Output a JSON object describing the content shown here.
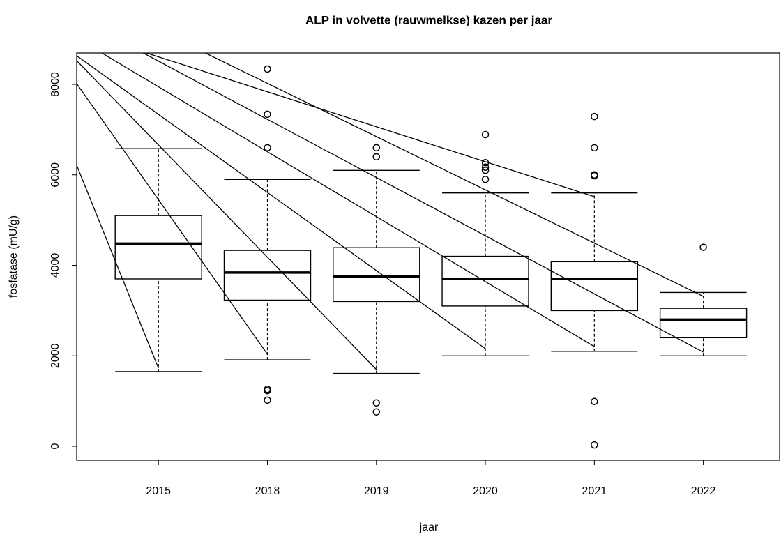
{
  "chart_data": {
    "type": "boxplot",
    "title": "ALP in volvette (rauwmelkse) kazen per jaar",
    "x_label": "jaar",
    "y_label": "fosfatase (mU/g)",
    "categories": [
      "2015",
      "2018",
      "2019",
      "2020",
      "2021",
      "2022"
    ],
    "boxes": [
      {
        "whislo": 1650,
        "q1": 3700,
        "med": 4480,
        "q3": 5100,
        "whishi": 6580,
        "outliers": []
      },
      {
        "whislo": 1910,
        "q1": 3230,
        "med": 3840,
        "q3": 4330,
        "whishi": 5900,
        "outliers": [
          8340,
          7340,
          6600,
          1260,
          1230,
          1020
        ]
      },
      {
        "whislo": 1610,
        "q1": 3200,
        "med": 3750,
        "q3": 4390,
        "whishi": 6100,
        "outliers": [
          6600,
          6400,
          960,
          760
        ]
      },
      {
        "whislo": 2000,
        "q1": 3100,
        "med": 3700,
        "q3": 4200,
        "whishi": 5600,
        "outliers": [
          6890,
          6270,
          6170,
          6100,
          5900
        ]
      },
      {
        "whislo": 2100,
        "q1": 3000,
        "med": 3700,
        "q3": 4080,
        "whishi": 5600,
        "outliers": [
          7290,
          6600,
          6000,
          5980,
          990,
          30
        ]
      },
      {
        "whislo": 2000,
        "q1": 2400,
        "med": 2800,
        "q3": 3050,
        "whishi": 3400,
        "outliers": [
          4400
        ]
      }
    ],
    "lines": [
      {
        "x": [
          0.25,
          1
        ],
        "y": [
          6212,
          1726
        ]
      },
      {
        "x": [
          0.25,
          2
        ],
        "y": [
          8015,
          2035
        ]
      },
      {
        "x": [
          0.25,
          3
        ],
        "y": [
          8524,
          1696
        ]
      },
      {
        "x": [
          0.25,
          4
        ],
        "y": [
          8632,
          2158
        ]
      },
      {
        "x": [
          0.48,
          5
        ],
        "y": [
          8694,
          2204
        ]
      },
      {
        "x": [
          0.86,
          6
        ],
        "y": [
          8694,
          2081
        ]
      },
      {
        "x": [
          0.89,
          5
        ],
        "y": [
          8694,
          5518
        ]
      },
      {
        "x": [
          1.43,
          6
        ],
        "y": [
          8694,
          3314
        ]
      }
    ],
    "xlim": [
      0.25,
      6.7
    ],
    "ylim": [
      -308,
      8694
    ],
    "yticks": [
      0,
      2000,
      4000,
      6000,
      8000
    ],
    "color": "#000000"
  }
}
